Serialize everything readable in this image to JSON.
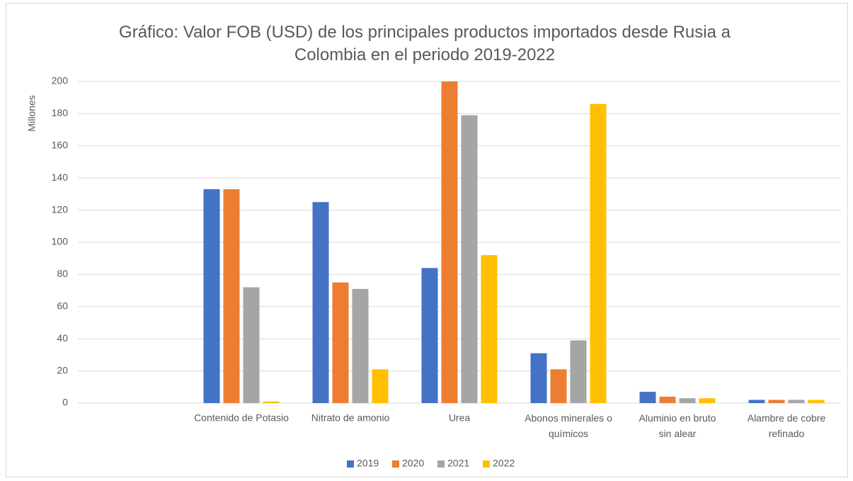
{
  "chart_data": {
    "type": "bar",
    "title": "Gráfico: Valor FOB (USD) de los principales productos importados desde Rusia a Colombia en el periodo 2019-2022",
    "y_label": "Millones",
    "categories": [
      null,
      "Contenido de Potasio",
      "Nitrato de amonio",
      "Urea",
      "Abonos minerales o químicos",
      "Aluminio en bruto sin alear",
      "Alambre de cobre refinado"
    ],
    "series": [
      {
        "name": "2019",
        "color": "#4472c4",
        "values": [
          null,
          133,
          125,
          84,
          31,
          7,
          2
        ]
      },
      {
        "name": "2020",
        "color": "#ed7d31",
        "values": [
          null,
          133,
          75,
          200,
          21,
          4,
          2
        ]
      },
      {
        "name": "2021",
        "color": "#a5a5a5",
        "values": [
          null,
          72,
          71,
          179,
          39,
          3,
          2
        ]
      },
      {
        "name": "2022",
        "color": "#ffc000",
        "values": [
          null,
          1,
          21,
          92,
          186,
          3,
          2
        ]
      }
    ],
    "ylim": [
      0,
      200
    ],
    "yticks": [
      0,
      20,
      40,
      60,
      80,
      100,
      120,
      140,
      160,
      180,
      200
    ],
    "grid": true,
    "legend": "bottom"
  }
}
